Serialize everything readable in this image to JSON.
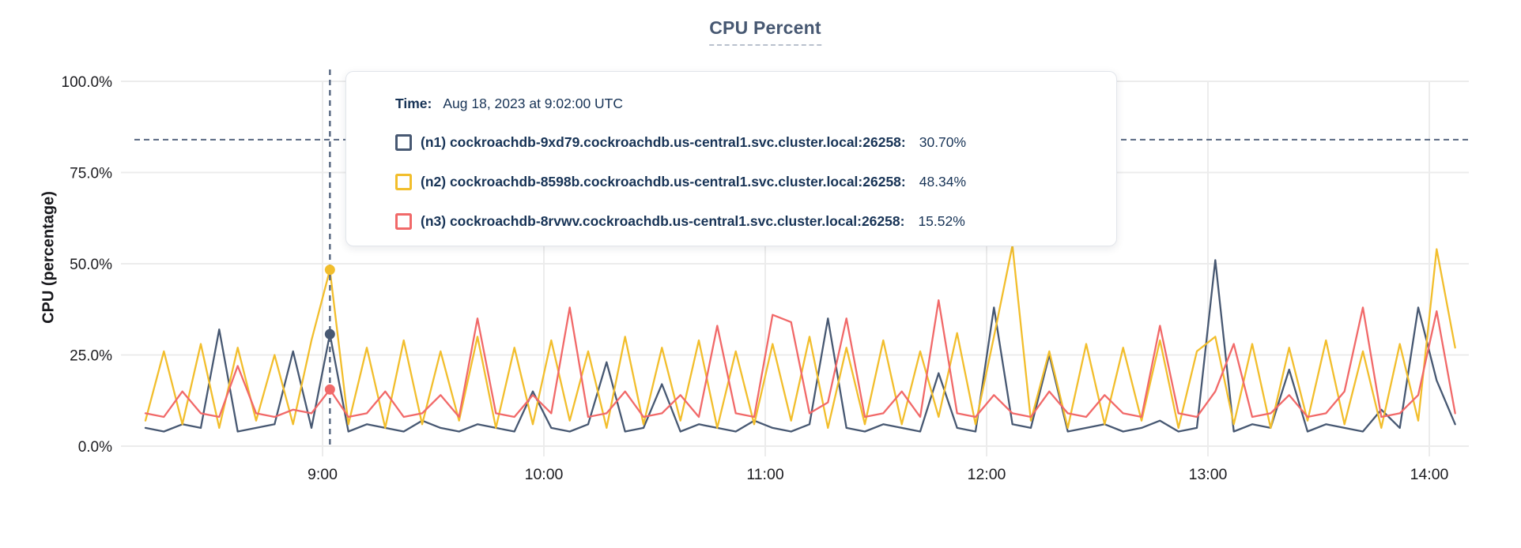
{
  "chart": {
    "title": "CPU Percent",
    "ylabel": "CPU (percentage)"
  },
  "tooltip": {
    "time_label": "Time:",
    "time_value": "Aug 18, 2023 at 9:02:00 UTC",
    "series": [
      {
        "label": "(n1) cockroachdb-9xd79.cockroachdb.us-central1.svc.cluster.local:26258:",
        "value": "30.70%",
        "color": "#475872"
      },
      {
        "label": "(n2) cockroachdb-8598b.cockroachdb.us-central1.svc.cluster.local:26258:",
        "value": "48.34%",
        "color": "#F2BE2C"
      },
      {
        "label": "(n3) cockroachdb-8rvwv.cockroachdb.us-central1.svc.cluster.local:26258:",
        "value": "15.52%",
        "color": "#F16969"
      }
    ]
  },
  "chart_data": {
    "type": "line",
    "title": "CPU Percent",
    "xlabel": "",
    "ylabel": "CPU (percentage)",
    "ylim": [
      0,
      100
    ],
    "grid": true,
    "legend_position": "hover-tooltip",
    "y_ticks": [
      {
        "value": 100,
        "label": "100.0%"
      },
      {
        "value": 75,
        "label": "75.0%"
      },
      {
        "value": 50,
        "label": "50.0%"
      },
      {
        "value": 25,
        "label": "25.0%"
      },
      {
        "value": 0,
        "label": "0.0%"
      }
    ],
    "x_ticks": [
      {
        "hour": 9,
        "label": "9:00"
      },
      {
        "hour": 10,
        "label": "10:00"
      },
      {
        "hour": 11,
        "label": "11:00"
      },
      {
        "hour": 12,
        "label": "12:00"
      },
      {
        "hour": 13,
        "label": "13:00"
      },
      {
        "hour": 14,
        "label": "14:00"
      }
    ],
    "start_time_minutes": 492,
    "step_minutes": 5,
    "hover": {
      "index": 10,
      "time": "Aug 18, 2023 at 9:02:00 UTC",
      "y_percent": 84,
      "values": [
        30.7,
        48.34,
        15.52
      ]
    },
    "crosshair_color": "#55657f",
    "series": [
      {
        "name": "(n1) cockroachdb-9xd79.cockroachdb.us-central1.svc.cluster.local:26258",
        "color": "#475872",
        "values": [
          5,
          4,
          6,
          5,
          32,
          4,
          5,
          6,
          26,
          5,
          30.7,
          4,
          6,
          5,
          4,
          7,
          5,
          4,
          6,
          5,
          4,
          15,
          5,
          4,
          6,
          23,
          4,
          5,
          17,
          4,
          6,
          5,
          4,
          7,
          5,
          4,
          6,
          35,
          5,
          4,
          6,
          5,
          4,
          20,
          5,
          4,
          38,
          6,
          5,
          25,
          4,
          5,
          6,
          4,
          5,
          7,
          4,
          5,
          51,
          4,
          6,
          5,
          21,
          4,
          6,
          5,
          4,
          10,
          5,
          38,
          18,
          6
        ]
      },
      {
        "name": "(n2) cockroachdb-8598b.cockroachdb.us-central1.svc.cluster.local:26258",
        "color": "#F2BE2C",
        "values": [
          7,
          26,
          6,
          28,
          5,
          27,
          7,
          25,
          6,
          29,
          48.34,
          6,
          27,
          5,
          29,
          6,
          26,
          7,
          30,
          5,
          27,
          6,
          29,
          7,
          26,
          5,
          30,
          6,
          27,
          7,
          29,
          5,
          26,
          6,
          28,
          7,
          30,
          5,
          27,
          6,
          29,
          6,
          26,
          8,
          31,
          6,
          30,
          55,
          7,
          26,
          5,
          28,
          6,
          27,
          7,
          29,
          5,
          26,
          30,
          6,
          28,
          5,
          27,
          7,
          29,
          6,
          26,
          5,
          28,
          7,
          54,
          27
        ]
      },
      {
        "name": "(n3) cockroachdb-8rvwv.cockroachdb.us-central1.svc.cluster.local:26258",
        "color": "#F16969",
        "values": [
          9,
          8,
          15,
          9,
          8,
          22,
          9,
          8,
          10,
          9,
          15.52,
          8,
          9,
          15,
          8,
          9,
          14,
          8,
          35,
          9,
          8,
          14,
          9,
          38,
          8,
          9,
          15,
          8,
          9,
          14,
          8,
          33,
          9,
          8,
          36,
          34,
          9,
          12,
          35,
          8,
          9,
          15,
          8,
          40,
          9,
          8,
          14,
          9,
          8,
          15,
          9,
          8,
          14,
          9,
          8,
          33,
          9,
          8,
          15,
          28,
          8,
          9,
          14,
          8,
          9,
          15,
          38,
          8,
          9,
          14,
          37,
          9
        ]
      }
    ]
  }
}
